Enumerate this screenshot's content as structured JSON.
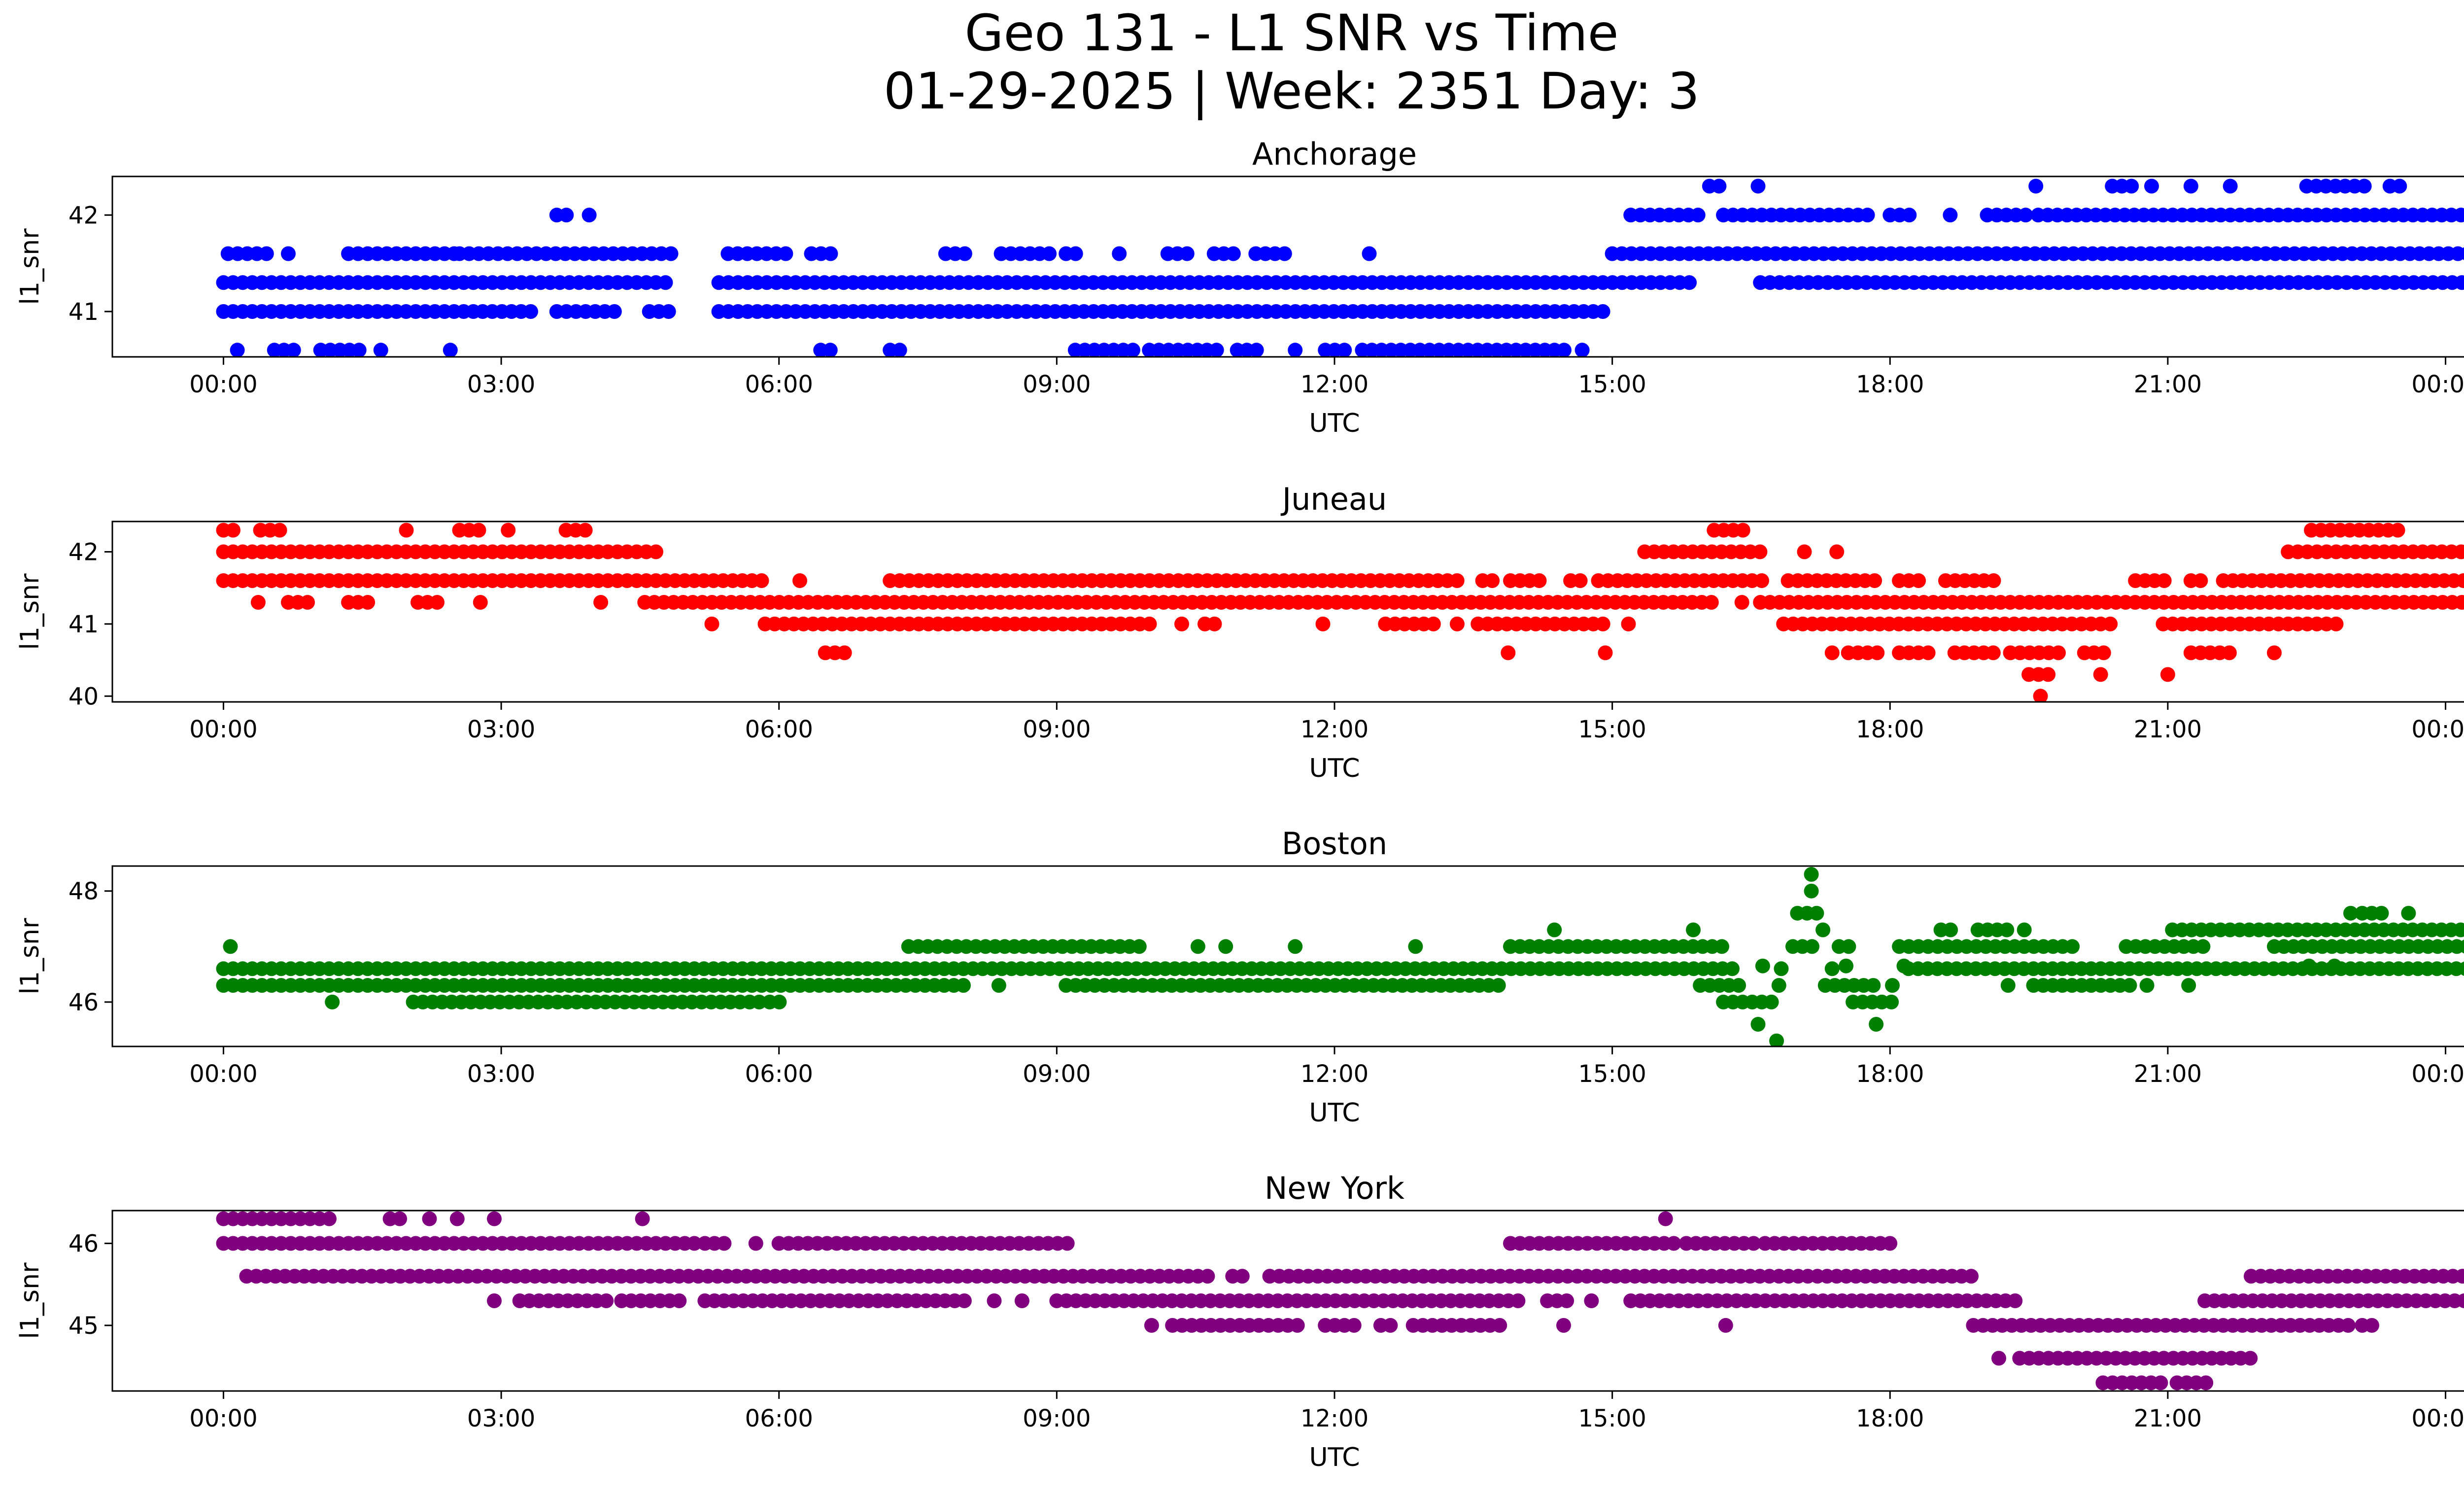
{
  "figure": {
    "title_line1": "Geo 131 - L1 SNR vs Time",
    "title_line2": "01-29-2025 | Week: 2351 Day: 3"
  },
  "chart_data": [
    {
      "type": "scatter",
      "title": "Anchorage",
      "color": "#0000ff",
      "xlabel": "UTC",
      "ylabel": "l1_snr",
      "xticks": [
        "00:00",
        "03:00",
        "06:00",
        "09:00",
        "12:00",
        "15:00",
        "18:00",
        "21:00",
        "00:00"
      ],
      "xlim": [
        -1.2,
        25.2
      ],
      "ylim": [
        40.53,
        42.4
      ],
      "yticks": [
        41,
        42
      ],
      "segments": [
        {
          "y": 41.6,
          "x": [
            [
              0.05,
              0.55
            ],
            [
              0.65,
              0.75
            ],
            [
              1.35,
              2.5
            ],
            [
              2.55,
              4.85
            ],
            [
              5.45,
              6.1
            ],
            [
              6.35,
              6.6
            ],
            [
              7.8,
              8.1
            ],
            [
              8.4,
              9.0
            ],
            [
              9.1,
              9.3
            ],
            [
              9.65,
              9.7
            ],
            [
              10.2,
              10.5
            ],
            [
              10.7,
              11.0
            ],
            [
              11.15,
              11.5
            ],
            [
              12.35,
              12.4
            ],
            [
              15.0,
              25.0
            ]
          ]
        },
        {
          "y": 41.3,
          "x": [
            [
              0.0,
              4.85
            ],
            [
              5.35,
              15.85
            ],
            [
              16.6,
              24.85
            ],
            [
              24.95,
              25.0
            ]
          ]
        },
        {
          "y": 41.0,
          "x": [
            [
              0.0,
              2.7
            ],
            [
              2.8,
              3.4
            ],
            [
              3.6,
              4.25
            ],
            [
              4.6,
              4.85
            ],
            [
              5.35,
              15.0
            ]
          ]
        },
        {
          "y": 40.6,
          "x": [
            [
              0.15,
              0.15
            ],
            [
              0.55,
              0.8
            ],
            [
              1.05,
              1.5
            ],
            [
              1.7,
              1.7
            ],
            [
              2.4,
              2.5
            ],
            [
              6.45,
              6.6
            ],
            [
              7.2,
              7.4
            ],
            [
              9.2,
              9.9
            ],
            [
              10.0,
              10.8
            ],
            [
              10.95,
              11.2
            ],
            [
              11.55,
              11.6
            ],
            [
              11.9,
              12.2
            ],
            [
              12.3,
              14.5
            ],
            [
              14.65,
              14.7
            ]
          ]
        },
        {
          "y": 42.0,
          "x": [
            [
              3.6,
              3.8
            ],
            [
              3.9,
              4.0
            ],
            [
              15.2,
              16.0
            ],
            [
              16.2,
              17.8
            ],
            [
              18.0,
              18.3
            ],
            [
              18.6,
              18.7
            ],
            [
              19.05,
              19.5
            ],
            [
              19.6,
              25.0
            ]
          ]
        },
        {
          "y": 42.3,
          "x": [
            [
              16.05,
              16.25
            ],
            [
              16.55,
              16.6
            ],
            [
              19.55,
              19.6
            ],
            [
              20.4,
              20.65
            ],
            [
              20.8,
              20.85
            ],
            [
              21.2,
              21.3
            ],
            [
              21.65,
              21.7
            ],
            [
              22.5,
              23.2
            ],
            [
              23.4,
              23.55
            ]
          ]
        }
      ]
    },
    {
      "type": "scatter",
      "title": "Juneau",
      "color": "#ff0000",
      "xlabel": "UTC",
      "ylabel": "l1_snr",
      "xticks": [
        "00:00",
        "03:00",
        "06:00",
        "09:00",
        "12:00",
        "15:00",
        "18:00",
        "21:00",
        "00:00"
      ],
      "xlim": [
        -1.2,
        25.2
      ],
      "ylim": [
        39.92,
        42.42
      ],
      "yticks": [
        40,
        41,
        42
      ],
      "segments": [
        {
          "y": 42.0,
          "x": [
            [
              0.0,
              4.75
            ],
            [
              15.35,
              16.6
            ],
            [
              17.05,
              17.1
            ],
            [
              17.4,
              17.45
            ],
            [
              22.3,
              25.0
            ]
          ]
        },
        {
          "y": 41.6,
          "x": [
            [
              0.0,
              5.85
            ],
            [
              6.2,
              6.25
            ],
            [
              7.2,
              13.4
            ],
            [
              13.6,
              13.75
            ],
            [
              13.9,
              14.3
            ],
            [
              14.55,
              14.7
            ],
            [
              14.85,
              16.7
            ],
            [
              16.9,
              17.85
            ],
            [
              18.1,
              18.35
            ],
            [
              18.6,
              19.2
            ],
            [
              20.65,
              21.05
            ],
            [
              21.25,
              21.45
            ],
            [
              21.6,
              25.0
            ]
          ]
        },
        {
          "y": 41.3,
          "x": [
            [
              0.35,
              0.4
            ],
            [
              0.7,
              1.0
            ],
            [
              1.35,
              1.6
            ],
            [
              2.1,
              2.4
            ],
            [
              2.75,
              2.8
            ],
            [
              4.05,
              4.1
            ],
            [
              4.55,
              16.15
            ],
            [
              16.35,
              16.45
            ],
            [
              16.6,
              24.4
            ],
            [
              24.45,
              25.0
            ]
          ]
        },
        {
          "y": 41.0,
          "x": [
            [
              5.25,
              5.3
            ],
            [
              5.85,
              10.1
            ],
            [
              10.3,
              10.4
            ],
            [
              10.6,
              10.8
            ],
            [
              11.85,
              11.9
            ],
            [
              12.55,
              13.1
            ],
            [
              13.3,
              13.35
            ],
            [
              13.55,
              14.9
            ],
            [
              15.15,
              15.2
            ],
            [
              16.85,
              20.45
            ],
            [
              20.95,
              22.9
            ]
          ]
        },
        {
          "y": 40.6,
          "x": [
            [
              6.5,
              6.8
            ],
            [
              13.85,
              13.9
            ],
            [
              14.9,
              14.95
            ],
            [
              17.35,
              17.4
            ],
            [
              17.55,
              17.9
            ],
            [
              18.1,
              18.5
            ],
            [
              18.7,
              19.2
            ],
            [
              19.3,
              19.9
            ],
            [
              20.1,
              20.4
            ],
            [
              21.25,
              21.7
            ],
            [
              22.1,
              22.2
            ]
          ]
        },
        {
          "y": 42.3,
          "x": [
            [
              0.0,
              0.15
            ],
            [
              0.4,
              0.65
            ],
            [
              1.95,
              2.0
            ],
            [
              2.55,
              2.8
            ],
            [
              3.05,
              3.1
            ],
            [
              3.7,
              4.0
            ],
            [
              16.1,
              16.5
            ],
            [
              22.55,
              23.5
            ],
            [
              24.9,
              25.0
            ]
          ]
        },
        {
          "y": 40.3,
          "x": [
            [
              19.5,
              19.75
            ],
            [
              20.25,
              20.3
            ],
            [
              21.0,
              21.0
            ]
          ]
        },
        {
          "y": 40.0,
          "x": [
            [
              19.6,
              19.65
            ]
          ]
        }
      ]
    },
    {
      "type": "scatter",
      "title": "Boston",
      "color": "#008000",
      "xlabel": "UTC",
      "ylabel": "l1_snr",
      "xticks": [
        "00:00",
        "03:00",
        "06:00",
        "09:00",
        "12:00",
        "15:00",
        "18:00",
        "21:00",
        "00:00"
      ],
      "xlim": [
        -1.2,
        25.2
      ],
      "ylim": [
        45.2,
        48.45
      ],
      "yticks": [
        46,
        48
      ],
      "segments": [
        {
          "y": 46.6,
          "x": [
            [
              0.0,
              16.3
            ],
            [
              16.8,
              16.85
            ],
            [
              17.35,
              17.4
            ],
            [
              18.2,
              25.0
            ]
          ]
        },
        {
          "y": 46.3,
          "x": [
            [
              0.0,
              8.0
            ],
            [
              8.35,
              8.4
            ],
            [
              9.1,
              13.85
            ],
            [
              15.95,
              16.45
            ],
            [
              16.75,
              16.85
            ],
            [
              17.3,
              17.9
            ],
            [
              18.0,
              18.05
            ],
            [
              19.25,
              19.3
            ],
            [
              19.55,
              20.6
            ],
            [
              20.75,
              20.8
            ],
            [
              21.2,
              21.25
            ]
          ]
        },
        {
          "y": 46.0,
          "x": [
            [
              1.15,
              1.2
            ],
            [
              2.05,
              5.8
            ],
            [
              5.9,
              6.05
            ],
            [
              16.2,
              16.75
            ],
            [
              17.6,
              18.1
            ]
          ]
        },
        {
          "y": 47.0,
          "x": [
            [
              0.05,
              0.1
            ],
            [
              7.4,
              9.9
            ],
            [
              10.5,
              10.55
            ],
            [
              10.8,
              10.85
            ],
            [
              11.55,
              11.6
            ],
            [
              12.85,
              12.9
            ],
            [
              13.9,
              16.25
            ],
            [
              16.95,
              17.2
            ],
            [
              17.45,
              17.65
            ],
            [
              18.1,
              20.0
            ],
            [
              20.55,
              21.4
            ],
            [
              22.15,
              25.0
            ]
          ]
        },
        {
          "y": 47.3,
          "x": [
            [
              14.35,
              14.4
            ],
            [
              15.85,
              15.9
            ],
            [
              17.25,
              17.3
            ],
            [
              18.55,
              18.75
            ],
            [
              18.95,
              19.3
            ],
            [
              19.4,
              19.5
            ],
            [
              21.05,
              25.0
            ]
          ]
        },
        {
          "y": 45.6,
          "x": [
            [
              16.55,
              16.6
            ],
            [
              17.8,
              17.9
            ]
          ]
        },
        {
          "y": 45.3,
          "x": [
            [
              16.75,
              16.8
            ]
          ]
        },
        {
          "y": 46.65,
          "x": [
            [
              16.6,
              16.65
            ],
            [
              17.5,
              17.55
            ],
            [
              18.15,
              18.15
            ],
            [
              22.5,
              22.55
            ],
            [
              22.75,
              22.85
            ]
          ]
        },
        {
          "y": 47.6,
          "x": [
            [
              17.0,
              17.25
            ],
            [
              22.95,
              23.0
            ],
            [
              23.1,
              23.35
            ],
            [
              23.55,
              23.65
            ]
          ]
        },
        {
          "y": 48.0,
          "x": [
            [
              17.1,
              17.2
            ]
          ]
        },
        {
          "y": 48.3,
          "x": [
            [
              17.15,
              17.15
            ]
          ]
        }
      ]
    },
    {
      "type": "scatter",
      "title": "New York",
      "color": "#800080",
      "xlabel": "UTC",
      "ylabel": "l1_snr",
      "xticks": [
        "00:00",
        "03:00",
        "06:00",
        "09:00",
        "12:00",
        "15:00",
        "18:00",
        "21:00",
        "00:00"
      ],
      "xlim": [
        -1.2,
        25.2
      ],
      "ylim": [
        44.2,
        46.4
      ],
      "yticks": [
        45,
        46
      ],
      "segments": [
        {
          "y": 46.3,
          "x": [
            [
              0.0,
              1.15
            ],
            [
              1.8,
              2.0
            ],
            [
              2.2,
              2.25
            ],
            [
              2.5,
              2.55
            ],
            [
              2.9,
              2.95
            ],
            [
              4.5,
              4.55
            ],
            [
              15.55,
              15.6
            ]
          ]
        },
        {
          "y": 46.0,
          "x": [
            [
              0.0,
              5.1
            ],
            [
              5.2,
              5.45
            ],
            [
              5.7,
              5.8
            ],
            [
              6.0,
              9.2
            ],
            [
              13.9,
              15.7
            ],
            [
              15.8,
              16.55
            ],
            [
              16.65,
              18.05
            ],
            [
              24.85,
              25.0
            ]
          ]
        },
        {
          "y": 45.6,
          "x": [
            [
              0.25,
              10.7
            ],
            [
              10.9,
              11.05
            ],
            [
              11.3,
              18.95
            ],
            [
              21.9,
              25.0
            ]
          ]
        },
        {
          "y": 45.3,
          "x": [
            [
              2.9,
              2.95
            ],
            [
              3.2,
              4.15
            ],
            [
              4.3,
              4.95
            ],
            [
              5.2,
              8.1
            ],
            [
              8.3,
              8.35
            ],
            [
              8.6,
              8.65
            ],
            [
              9.0,
              14.0
            ],
            [
              14.3,
              14.55
            ],
            [
              14.75,
              14.8
            ],
            [
              15.2,
              19.4
            ],
            [
              21.4,
              25.0
            ]
          ]
        },
        {
          "y": 45.0,
          "x": [
            [
              10.0,
              10.05
            ],
            [
              10.25,
              11.7
            ],
            [
              11.9,
              12.3
            ],
            [
              12.5,
              12.7
            ],
            [
              12.85,
              13.8
            ],
            [
              14.45,
              14.5
            ],
            [
              16.2,
              16.25
            ],
            [
              18.9,
              23.0
            ],
            [
              23.1,
              23.3
            ],
            [
              24.55,
              24.6
            ]
          ]
        },
        {
          "y": 44.6,
          "x": [
            [
              19.15,
              19.2
            ],
            [
              19.4,
              21.9
            ]
          ]
        },
        {
          "y": 44.3,
          "x": [
            [
              20.3,
              21.0
            ],
            [
              21.1,
              21.5
            ]
          ]
        }
      ]
    }
  ]
}
